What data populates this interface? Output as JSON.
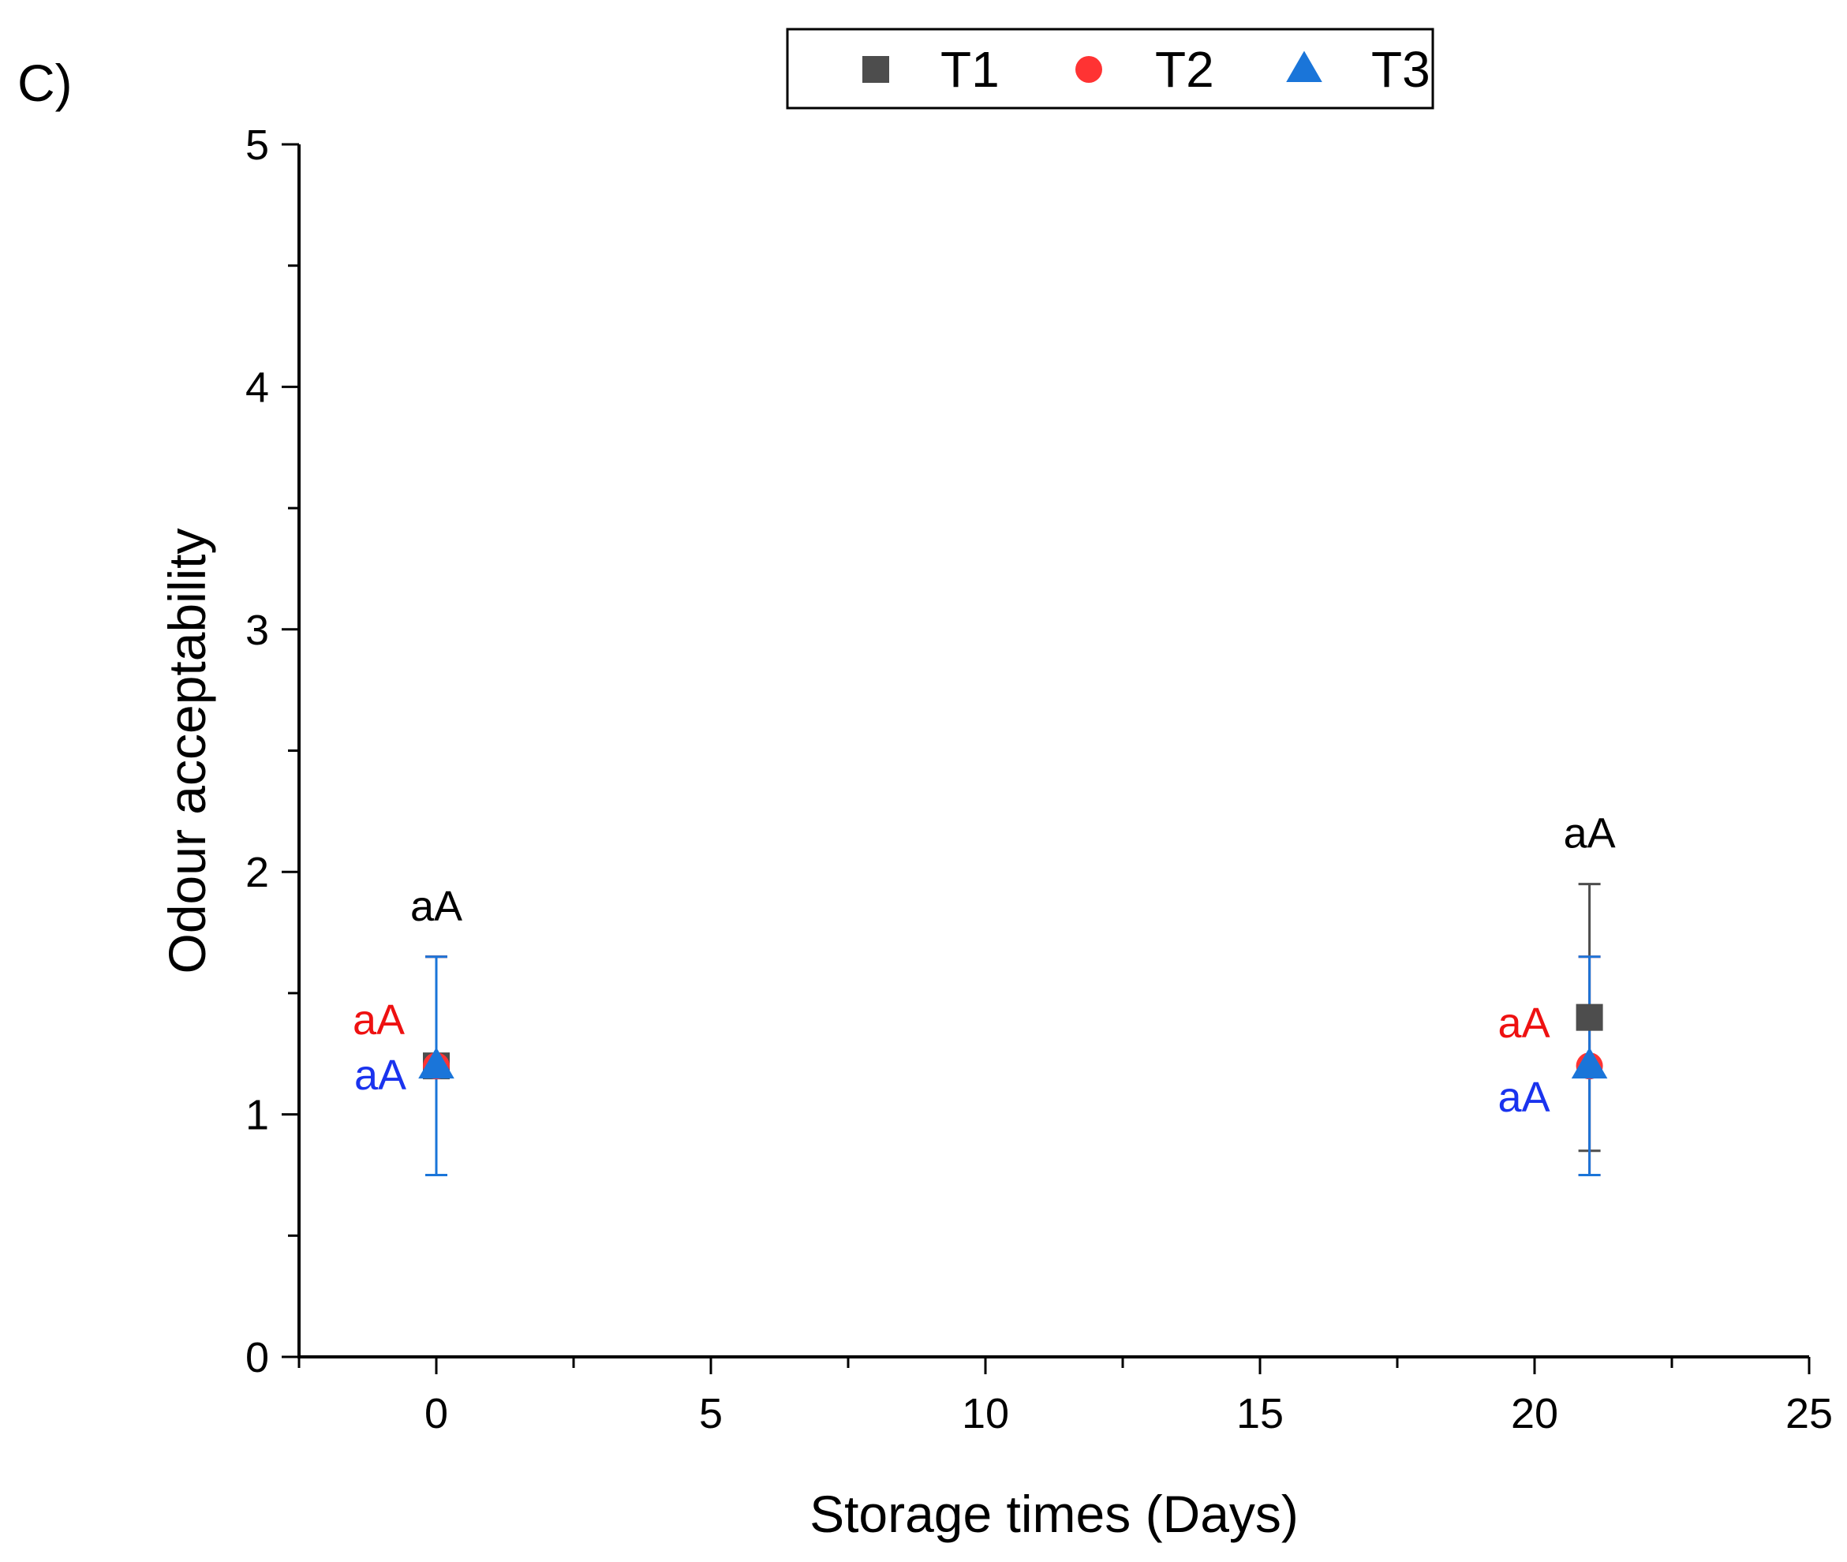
{
  "chart_data": {
    "type": "scatter",
    "panel_label": "C)",
    "xlabel": "Storage times (Days)",
    "ylabel": "Odour acceptability",
    "xlim": [
      -2.5,
      25
    ],
    "ylim": [
      0,
      5
    ],
    "xticks": [
      0,
      5,
      10,
      15,
      20,
      25
    ],
    "yticks": [
      0,
      1,
      2,
      3,
      4,
      5
    ],
    "legend_position": "top-center",
    "series": [
      {
        "name": "T1",
        "marker": "square",
        "color": "#4d4d4d",
        "errorbar_color": "#4d4d4d",
        "points": [
          {
            "x": 0,
            "y": 1.2,
            "err_low": 0.75,
            "err_high": 1.65,
            "annotation": "aA"
          },
          {
            "x": 21,
            "y": 1.4,
            "err_low": 0.85,
            "err_high": 1.95,
            "annotation": "aA"
          }
        ]
      },
      {
        "name": "T2",
        "marker": "circle",
        "color": "#ff3333",
        "errorbar_color": "#ff3333",
        "points": [
          {
            "x": 0,
            "y": 1.2,
            "err_low": 0.75,
            "err_high": 1.65,
            "annotation": "aA"
          },
          {
            "x": 21,
            "y": 1.2,
            "err_low": 0.75,
            "err_high": 1.65,
            "annotation": "aA"
          }
        ]
      },
      {
        "name": "T3",
        "marker": "triangle",
        "color": "#1a75d9",
        "errorbar_color": "#1a75d9",
        "points": [
          {
            "x": 0,
            "y": 1.2,
            "err_low": 0.75,
            "err_high": 1.65,
            "annotation": "aA"
          },
          {
            "x": 21,
            "y": 1.2,
            "err_low": 0.75,
            "err_high": 1.65,
            "annotation": "aA"
          }
        ]
      }
    ],
    "annotation_colors": {
      "T1": "#000000",
      "T2": "#ee1111",
      "T3": "#1a33ee"
    }
  }
}
